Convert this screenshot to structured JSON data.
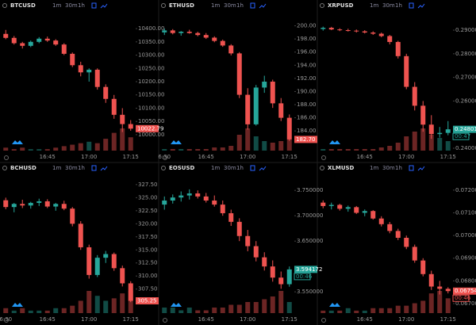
{
  "toolbar": {
    "intervals": [
      "1m",
      "30m",
      "1h"
    ]
  },
  "chart_data": [
    {
      "type": "candlestick",
      "symbol": "BTCUSD",
      "up_color": "#26a69a",
      "down_color": "#ef5350",
      "grid": false,
      "categories": [
        null,
        null,
        null,
        null,
        null,
        "16:45",
        null,
        null,
        null,
        null,
        "17:00",
        null,
        null,
        null,
        null,
        "17:15"
      ],
      "open": [
        10380,
        10365,
        10345,
        10335,
        10350,
        10362,
        10355,
        10340,
        10305,
        10262,
        10235,
        10245,
        10180,
        10135,
        10075,
        10040
      ],
      "high": [
        10395,
        10372,
        10350,
        10355,
        10368,
        10370,
        10360,
        10345,
        10310,
        10275,
        10250,
        10250,
        10190,
        10150,
        10100,
        10055
      ],
      "low": [
        10360,
        10340,
        10325,
        10330,
        10345,
        10350,
        10335,
        10300,
        10255,
        10220,
        10200,
        10170,
        10120,
        10060,
        10010,
        10015
      ],
      "close": [
        10365,
        10345,
        10335,
        10350,
        10362,
        10355,
        10340,
        10305,
        10262,
        10235,
        10245,
        10180,
        10135,
        10075,
        10040,
        10022.79
      ],
      "volume": [
        2,
        1,
        2,
        1,
        1,
        1,
        2,
        3,
        4,
        5,
        6,
        5,
        8,
        12,
        15,
        9
      ],
      "ylim": [
        9940,
        10460
      ],
      "yticks": [
        {
          "value": 10400,
          "label": "10400.00"
        },
        {
          "value": 10350,
          "label": "10350.00"
        },
        {
          "value": 10300,
          "label": "10300.00"
        },
        {
          "value": 10250,
          "label": "10250.00"
        },
        {
          "value": 10200,
          "label": "10200.00"
        },
        {
          "value": 10150,
          "label": "10150.00"
        },
        {
          "value": 10100,
          "label": "10100.00"
        },
        {
          "value": 10050,
          "label": "10050.00"
        },
        {
          "value": 10000,
          "label": "10000.00"
        }
      ],
      "last_label": "10022.79"
    },
    {
      "type": "candlestick",
      "symbol": "ETHUSD",
      "up_color": "#26a69a",
      "down_color": "#ef5350",
      "grid": false,
      "categories": [
        "6:30",
        null,
        null,
        null,
        null,
        "16:45",
        null,
        null,
        null,
        null,
        "17:00",
        null,
        null,
        null,
        null,
        "17:15"
      ],
      "open": [
        199.0,
        199.3,
        198.9,
        199.1,
        198.9,
        198.6,
        198.2,
        197.7,
        197.0,
        195.8,
        189.5,
        185.0,
        190.6,
        191.5,
        188.2,
        186.0
      ],
      "high": [
        199.6,
        199.5,
        199.2,
        199.4,
        199.1,
        198.9,
        198.4,
        197.9,
        197.2,
        196.0,
        190.5,
        191.0,
        192.4,
        191.8,
        189.0,
        186.5
      ],
      "low": [
        198.6,
        198.7,
        198.5,
        198.8,
        198.4,
        198.0,
        197.5,
        196.8,
        195.5,
        189.0,
        184.2,
        184.8,
        189.8,
        187.5,
        185.5,
        182.5
      ],
      "close": [
        199.3,
        198.9,
        199.1,
        198.9,
        198.6,
        198.2,
        197.7,
        197.0,
        195.8,
        189.5,
        185.0,
        190.6,
        191.5,
        188.2,
        186.0,
        182.7
      ],
      "volume": [
        1,
        1,
        1,
        1,
        1,
        1,
        2,
        2,
        3,
        10,
        14,
        9,
        6,
        5,
        6,
        7
      ],
      "ylim": [
        181,
        202
      ],
      "yticks": [
        {
          "value": 200,
          "label": "200.00"
        },
        {
          "value": 198,
          "label": "198.00"
        },
        {
          "value": 196,
          "label": "196.00"
        },
        {
          "value": 194,
          "label": "194.00"
        },
        {
          "value": 192,
          "label": "192.00"
        },
        {
          "value": 190,
          "label": "190.00"
        },
        {
          "value": 188,
          "label": "188.00"
        },
        {
          "value": 186,
          "label": "186.00"
        },
        {
          "value": 184,
          "label": "184.00"
        }
      ],
      "last_label": "182.70"
    },
    {
      "type": "candlestick",
      "symbol": "XRPUSD",
      "up_color": "#26a69a",
      "down_color": "#ef5350",
      "grid": false,
      "categories": [
        null,
        null,
        null,
        null,
        null,
        "16:45",
        null,
        null,
        null,
        null,
        "17:00",
        null,
        null,
        null,
        null,
        "17:15"
      ],
      "open": [
        0.2905,
        0.291,
        0.2903,
        0.29,
        0.2898,
        0.2895,
        0.289,
        0.2885,
        0.2875,
        0.285,
        0.279,
        0.266,
        0.258,
        0.25,
        0.246,
        0.2465
      ],
      "high": [
        0.2915,
        0.2914,
        0.2908,
        0.2906,
        0.2903,
        0.29,
        0.2895,
        0.289,
        0.288,
        0.2855,
        0.28,
        0.268,
        0.26,
        0.254,
        0.249,
        0.2515
      ],
      "low": [
        0.2898,
        0.29,
        0.2896,
        0.2894,
        0.289,
        0.2886,
        0.288,
        0.287,
        0.284,
        0.278,
        0.265,
        0.256,
        0.247,
        0.244,
        0.2445,
        0.2455
      ],
      "close": [
        0.291,
        0.2903,
        0.29,
        0.2898,
        0.2895,
        0.289,
        0.2885,
        0.2875,
        0.285,
        0.279,
        0.266,
        0.258,
        0.25,
        0.246,
        0.2465,
        0.2480155
      ],
      "volume": [
        1,
        1,
        1,
        1,
        1,
        1,
        1,
        2,
        3,
        5,
        9,
        12,
        14,
        10,
        8,
        6
      ],
      "ylim": [
        0.239,
        0.2974
      ],
      "yticks": [
        {
          "value": 0.29,
          "label": "0.2900000"
        },
        {
          "value": 0.28,
          "label": "0.2800000"
        },
        {
          "value": 0.27,
          "label": "0.2700000"
        },
        {
          "value": 0.26,
          "label": "0.2600000"
        },
        {
          "value": 0.24,
          "label": "0.2400000"
        }
      ],
      "last_label": "0.2480155",
      "countdown": "00:47"
    },
    {
      "type": "candlestick",
      "symbol": "BCHUSD",
      "up_color": "#26a69a",
      "down_color": "#ef5350",
      "grid": false,
      "categories": [
        "6:30",
        null,
        null,
        null,
        null,
        "16:45",
        null,
        null,
        null,
        null,
        "17:00",
        null,
        null,
        null,
        null,
        "17:15"
      ],
      "open": [
        324.5,
        323.2,
        323.8,
        323.5,
        324.0,
        324.3,
        323.3,
        323.8,
        322.9,
        320.0,
        315.5,
        310.2,
        313.5,
        314.2,
        311.5,
        308.6
      ],
      "high": [
        325.0,
        324.0,
        324.6,
        324.2,
        324.8,
        324.7,
        324.0,
        324.4,
        323.2,
        320.5,
        316.0,
        314.0,
        314.8,
        314.5,
        312.0,
        309.0
      ],
      "low": [
        322.8,
        322.2,
        323.0,
        322.9,
        323.4,
        323.0,
        322.5,
        322.6,
        319.5,
        315.0,
        309.5,
        309.8,
        312.5,
        311.0,
        308.0,
        305.0
      ],
      "close": [
        323.2,
        323.8,
        323.5,
        324.0,
        324.3,
        323.3,
        323.8,
        322.9,
        320.0,
        315.5,
        310.2,
        313.5,
        314.2,
        311.5,
        308.6,
        305.25
      ],
      "volume": [
        2,
        1,
        2,
        1,
        1,
        1,
        2,
        2,
        3,
        5,
        9,
        7,
        5,
        6,
        8,
        9
      ],
      "ylim": [
        302.9,
        329.3
      ],
      "yticks": [
        {
          "value": 327.5,
          "label": "327.50"
        },
        {
          "value": 325,
          "label": "325.00"
        },
        {
          "value": 322.5,
          "label": "322.50"
        },
        {
          "value": 320,
          "label": "320.00"
        },
        {
          "value": 317.5,
          "label": "317.50"
        },
        {
          "value": 315,
          "label": "315.00"
        },
        {
          "value": 312.5,
          "label": "312.50"
        },
        {
          "value": 310,
          "label": "310.00"
        },
        {
          "value": 307.5,
          "label": "307.50"
        }
      ],
      "last_label": "305.25"
    },
    {
      "type": "candlestick",
      "symbol": "EOSUSD",
      "up_color": "#26a69a",
      "down_color": "#ef5350",
      "grid": false,
      "categories": [
        null,
        null,
        null,
        null,
        null,
        "16:45",
        null,
        null,
        null,
        null,
        "17:00",
        null,
        null,
        null,
        null,
        "17:15"
      ],
      "open": [
        3.722,
        3.73,
        3.736,
        3.74,
        3.744,
        3.738,
        3.73,
        3.722,
        3.705,
        3.688,
        3.66,
        3.64,
        3.618,
        3.6,
        3.578,
        3.565
      ],
      "high": [
        3.738,
        3.742,
        3.748,
        3.752,
        3.75,
        3.745,
        3.74,
        3.73,
        3.712,
        3.695,
        3.672,
        3.65,
        3.628,
        3.612,
        3.59,
        3.6
      ],
      "low": [
        3.712,
        3.724,
        3.728,
        3.732,
        3.734,
        3.726,
        3.718,
        3.7,
        3.68,
        3.65,
        3.63,
        3.61,
        3.592,
        3.57,
        3.556,
        3.56
      ],
      "close": [
        3.73,
        3.736,
        3.74,
        3.744,
        3.738,
        3.73,
        3.722,
        3.705,
        3.688,
        3.66,
        3.64,
        3.618,
        3.6,
        3.578,
        3.565,
        3.594172
      ],
      "volume": [
        2,
        2,
        1,
        2,
        1,
        1,
        2,
        2,
        3,
        3,
        4,
        4,
        5,
        6,
        8,
        4
      ],
      "ylim": [
        3.508,
        3.78
      ],
      "yticks": [
        {
          "value": 3.75,
          "label": "3.750000"
        },
        {
          "value": 3.7,
          "label": "3.700000"
        },
        {
          "value": 3.65,
          "label": "3.650000"
        },
        {
          "value": 3.55,
          "label": "3.550000"
        }
      ],
      "last_label": "3.594172",
      "countdown": "00:46"
    },
    {
      "type": "candlestick",
      "symbol": "XLMUSD",
      "up_color": "#26a69a",
      "down_color": "#ef5350",
      "grid": false,
      "categories": [
        null,
        null,
        null,
        null,
        null,
        "16:45",
        null,
        null,
        null,
        null,
        "17:00",
        null,
        null,
        null,
        null,
        "17:15"
      ],
      "open": [
        0.07145,
        0.0713,
        0.07135,
        0.07118,
        0.07125,
        0.071,
        0.07108,
        0.07075,
        0.0705,
        0.0702,
        0.0699,
        0.0695,
        0.0689,
        0.0683,
        0.06775,
        0.06765
      ],
      "high": [
        0.07155,
        0.07145,
        0.0714,
        0.07132,
        0.0713,
        0.07115,
        0.07112,
        0.07085,
        0.0706,
        0.0703,
        0.07,
        0.0696,
        0.069,
        0.06845,
        0.068,
        0.06772
      ],
      "low": [
        0.0712,
        0.07115,
        0.0711,
        0.07105,
        0.07095,
        0.07085,
        0.0707,
        0.0704,
        0.0701,
        0.0698,
        0.0694,
        0.0688,
        0.0682,
        0.0676,
        0.0674,
        0.06745
      ],
      "close": [
        0.0713,
        0.07135,
        0.07118,
        0.07125,
        0.071,
        0.07108,
        0.07075,
        0.0705,
        0.0702,
        0.0699,
        0.0695,
        0.0689,
        0.0683,
        0.06775,
        0.06765,
        0.0675498
      ],
      "volume": [
        1,
        1,
        1,
        2,
        1,
        1,
        2,
        2,
        2,
        3,
        3,
        4,
        5,
        8,
        9,
        6
      ],
      "ylim": [
        0.06658,
        0.07266
      ],
      "yticks": [
        {
          "value": 0.072,
          "label": "0.0720000"
        },
        {
          "value": 0.071,
          "label": "0.0710000"
        },
        {
          "value": 0.07,
          "label": "0.0700000"
        },
        {
          "value": 0.069,
          "label": "0.0690000"
        },
        {
          "value": 0.068,
          "label": "0.0680000"
        },
        {
          "value": 0.067,
          "label": "0.0670000"
        }
      ],
      "last_label": "0.0675498",
      "countdown": "00:46"
    }
  ]
}
